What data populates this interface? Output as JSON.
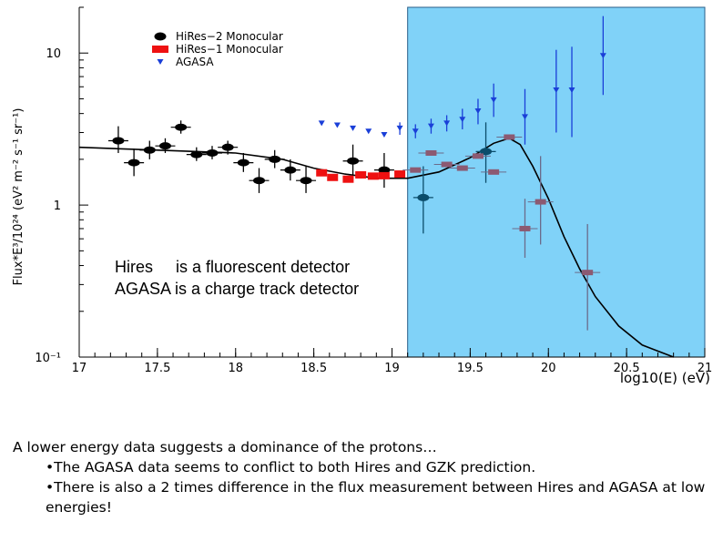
{
  "chart_data": {
    "type": "scatter",
    "xlabel": "log10(E) (eV)",
    "ylabel": "Flux*E³/10²⁴ (eV² m⁻² s⁻¹ sr⁻¹)",
    "xlim": [
      17,
      21
    ],
    "ylim": [
      0.1,
      20
    ],
    "yscale": "log",
    "x_ticks": [
      "17",
      "17.5",
      "18",
      "18.5",
      "19",
      "19.5",
      "20",
      "20.5",
      "21"
    ],
    "y_ticks": [
      {
        "value": 10,
        "label": "10"
      },
      {
        "value": 1,
        "label": "1"
      },
      {
        "value": 0.1,
        "label": "10⁻¹"
      }
    ],
    "legend_position": "top-left",
    "series": [
      {
        "name": "HiRes−2 Monocular",
        "marker": "ellipse",
        "color": "#000000",
        "points": [
          {
            "x": 17.25,
            "y": 2.65,
            "ylo": 2.2,
            "yhi": 3.3
          },
          {
            "x": 17.35,
            "y": 1.9,
            "ylo": 1.55,
            "yhi": 2.35
          },
          {
            "x": 17.45,
            "y": 2.3,
            "ylo": 2.0,
            "yhi": 2.65
          },
          {
            "x": 17.55,
            "y": 2.45,
            "ylo": 2.2,
            "yhi": 2.75
          },
          {
            "x": 17.65,
            "y": 3.25,
            "ylo": 2.95,
            "yhi": 3.6
          },
          {
            "x": 17.75,
            "y": 2.15,
            "ylo": 1.95,
            "yhi": 2.4
          },
          {
            "x": 17.85,
            "y": 2.2,
            "ylo": 2.0,
            "yhi": 2.45
          },
          {
            "x": 17.95,
            "y": 2.4,
            "ylo": 2.15,
            "yhi": 2.65
          },
          {
            "x": 18.05,
            "y": 1.9,
            "ylo": 1.65,
            "yhi": 2.2
          },
          {
            "x": 18.15,
            "y": 1.45,
            "ylo": 1.2,
            "yhi": 1.75
          },
          {
            "x": 18.25,
            "y": 2.0,
            "ylo": 1.75,
            "yhi": 2.3
          },
          {
            "x": 18.35,
            "y": 1.7,
            "ylo": 1.45,
            "yhi": 2.0
          },
          {
            "x": 18.45,
            "y": 1.45,
            "ylo": 1.2,
            "yhi": 1.8
          },
          {
            "x": 18.75,
            "y": 1.95,
            "ylo": 1.5,
            "yhi": 2.5
          },
          {
            "x": 18.95,
            "y": 1.7,
            "ylo": 1.3,
            "yhi": 2.2
          },
          {
            "x": 19.2,
            "y": 1.12,
            "ylo": 0.65,
            "yhi": 1.8
          },
          {
            "x": 19.6,
            "y": 2.25,
            "ylo": 1.4,
            "yhi": 3.5
          }
        ]
      },
      {
        "name": "HiRes−1 Monocular",
        "marker": "square",
        "color": "#ee1111",
        "points": [
          {
            "x": 18.55,
            "y": 1.63
          },
          {
            "x": 18.62,
            "y": 1.52
          },
          {
            "x": 18.72,
            "y": 1.48
          },
          {
            "x": 18.8,
            "y": 1.58
          },
          {
            "x": 18.88,
            "y": 1.55
          },
          {
            "x": 18.95,
            "y": 1.56
          },
          {
            "x": 19.05,
            "y": 1.6
          }
        ]
      },
      {
        "name": "AGASA",
        "marker": "triangle-down",
        "color": "#1a3fd8",
        "points": [
          {
            "x": 18.55,
            "y": 3.45
          },
          {
            "x": 18.65,
            "y": 3.35
          },
          {
            "x": 18.75,
            "y": 3.2
          },
          {
            "x": 18.85,
            "y": 3.05
          },
          {
            "x": 18.95,
            "y": 2.9
          },
          {
            "x": 19.05,
            "y": 3.2,
            "ylo": 2.9,
            "yhi": 3.5
          },
          {
            "x": 19.15,
            "y": 3.05,
            "ylo": 2.75,
            "yhi": 3.4
          },
          {
            "x": 19.25,
            "y": 3.3,
            "ylo": 2.95,
            "yhi": 3.7
          },
          {
            "x": 19.35,
            "y": 3.45,
            "ylo": 3.05,
            "yhi": 3.9
          },
          {
            "x": 19.45,
            "y": 3.65,
            "ylo": 3.15,
            "yhi": 4.3
          },
          {
            "x": 19.55,
            "y": 4.15,
            "ylo": 3.4,
            "yhi": 5.0
          },
          {
            "x": 19.65,
            "y": 4.9,
            "ylo": 3.8,
            "yhi": 6.3
          },
          {
            "x": 19.85,
            "y": 3.8,
            "ylo": 2.5,
            "yhi": 5.8
          },
          {
            "x": 20.05,
            "y": 5.7,
            "ylo": 3.0,
            "yhi": 10.5
          },
          {
            "x": 20.15,
            "y": 5.7,
            "ylo": 2.8,
            "yhi": 11.0
          },
          {
            "x": 20.35,
            "y": 9.6,
            "ylo": 5.3,
            "yhi": 17.5
          }
        ]
      },
      {
        "marker": "bar",
        "color": "#8c5a72",
        "points": [
          {
            "x": 19.15,
            "y": 1.7
          },
          {
            "x": 19.25,
            "y": 2.2
          },
          {
            "x": 19.35,
            "y": 1.85
          },
          {
            "x": 19.45,
            "y": 1.75
          },
          {
            "x": 19.55,
            "y": 2.1
          },
          {
            "x": 19.65,
            "y": 1.65
          },
          {
            "x": 19.75,
            "y": 2.8
          },
          {
            "x": 19.85,
            "y": 0.7,
            "ylo": 0.45,
            "yhi": 1.1
          },
          {
            "x": 19.95,
            "y": 1.05,
            "ylo": 0.55,
            "yhi": 2.1
          },
          {
            "x": 20.25,
            "y": 0.36,
            "ylo": 0.15,
            "yhi": 0.75
          }
        ]
      }
    ],
    "shaded_region": {
      "from": 19.1,
      "to": 21,
      "color": "#80d2f8"
    },
    "gzk_curve": [
      [
        17.0,
        2.4
      ],
      [
        17.5,
        2.3
      ],
      [
        18.0,
        2.2
      ],
      [
        18.3,
        2.0
      ],
      [
        18.5,
        1.75
      ],
      [
        18.7,
        1.6
      ],
      [
        18.9,
        1.5
      ],
      [
        19.1,
        1.5
      ],
      [
        19.3,
        1.65
      ],
      [
        19.5,
        2.05
      ],
      [
        19.65,
        2.55
      ],
      [
        19.75,
        2.75
      ],
      [
        19.82,
        2.5
      ],
      [
        19.9,
        1.8
      ],
      [
        20.0,
        1.1
      ],
      [
        20.1,
        0.62
      ],
      [
        20.2,
        0.38
      ],
      [
        20.3,
        0.25
      ],
      [
        20.45,
        0.16
      ],
      [
        20.6,
        0.12
      ],
      [
        20.8,
        0.1
      ]
    ]
  },
  "annotation": {
    "line1": "Hires     is a fluorescent detector",
    "line2": "AGASA is a charge track detector"
  },
  "caption": {
    "intro": "A lower energy data suggests a dominance of the protons…",
    "bullets": [
      "•The AGASA data seems to conflict to both Hires and GZK prediction.",
      "•There is also a 2 times difference in the flux measurement between Hires and AGASA at low energies!"
    ]
  }
}
